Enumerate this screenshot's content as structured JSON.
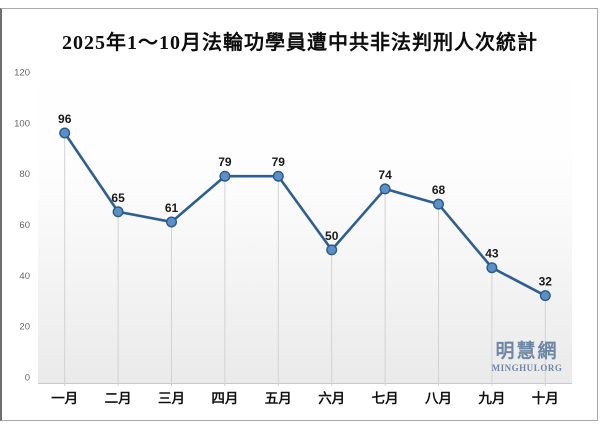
{
  "title": "2025年1～10月法輪功學員遭中共非法判刑人次統計",
  "watermark": {
    "cn": "明慧網",
    "en": "MINGHUI.ORG"
  },
  "chart_data": {
    "type": "line",
    "title": "2025年1～10月法輪功學員遭中共非法判刑人次統計",
    "categories": [
      "一月",
      "二月",
      "三月",
      "四月",
      "五月",
      "六月",
      "七月",
      "八月",
      "九月",
      "十月"
    ],
    "values": [
      96,
      65,
      61,
      79,
      79,
      50,
      74,
      68,
      43,
      32
    ],
    "xlabel": "",
    "ylabel": "",
    "ylim": [
      0,
      120
    ],
    "yticks": [
      0,
      20,
      40,
      60,
      80,
      100,
      120
    ],
    "grid": false,
    "legend_position": "none",
    "data_labels": true,
    "marker": "circle",
    "drop_lines": true,
    "colors": {
      "line": "#2e5f93",
      "marker_fill": "#5b90c6",
      "marker_stroke": "#2a5a8c",
      "drop_line": "#d2d2d2",
      "y_tick_label": "#666666",
      "x_tick_label": "#111111",
      "data_label": "#1a1a1a",
      "watermark": "#6d87a5",
      "plot_bg_bottom": "#eaeaea",
      "frame_border": "#a9a9a9"
    }
  }
}
